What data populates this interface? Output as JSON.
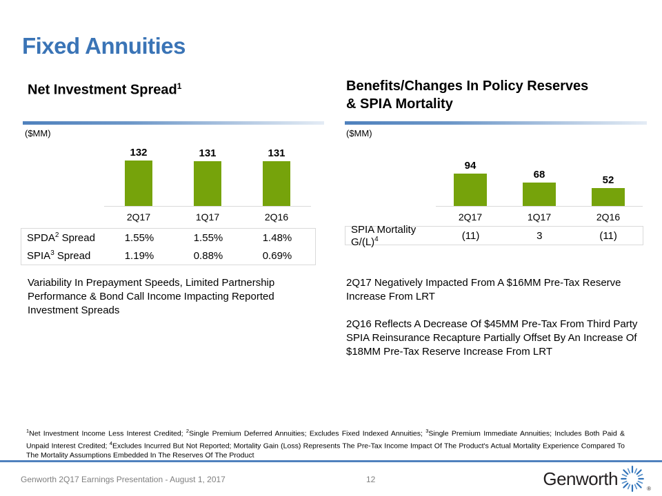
{
  "slide": {
    "title": "Fixed Annuities",
    "page_number": "12",
    "footer_text": "Genworth 2Q17 Earnings Presentation - August 1, 2017",
    "logo_text": "Genworth",
    "registered_mark": "®"
  },
  "left_panel": {
    "heading": "Net Investment Spread",
    "heading_sup": "1",
    "unit_label": "($MM)",
    "table": {
      "rows": [
        {
          "label_prefix": "SPDA",
          "label_sup": "2",
          "label_suffix": " Spread",
          "values": [
            "1.55%",
            "1.55%",
            "1.48%"
          ]
        },
        {
          "label_prefix": "SPIA",
          "label_sup": "3",
          "label_suffix": " Spread",
          "values": [
            "1.19%",
            "0.88%",
            "0.69%"
          ]
        }
      ]
    },
    "commentary": "Variability In Prepayment Speeds, Limited Partnership Performance & Bond Call Income Impacting Reported Investment Spreads"
  },
  "right_panel": {
    "heading_line1": "Benefits/Changes In Policy Reserves",
    "heading_line2": "& SPIA Mortality",
    "unit_label": "($MM)",
    "table": {
      "rows": [
        {
          "label_prefix": "SPIA Mortality G/(L)",
          "label_sup": "4",
          "label_suffix": "",
          "values": [
            "(11)",
            "3",
            "(11)"
          ]
        }
      ]
    },
    "commentary_1": "2Q17 Negatively Impacted From A $16MM Pre-Tax Reserve Increase From LRT",
    "commentary_2": "2Q16 Reflects A Decrease Of $45MM Pre-Tax From Third Party SPIA Reinsurance Recapture Partially Offset By An Increase Of $18MM Pre-Tax Reserve Increase From LRT"
  },
  "chart_data": [
    {
      "type": "bar",
      "title": "Net Investment Spread ($MM)",
      "categories": [
        "2Q17",
        "1Q17",
        "2Q16"
      ],
      "values": [
        132,
        131,
        131
      ],
      "value_labels_shown": true,
      "ylim": [
        0,
        140
      ],
      "grid": false,
      "legend": "none",
      "table_rows": [
        {
          "label": "SPDA(2) Spread",
          "values": [
            "1.55%",
            "1.55%",
            "1.48%"
          ]
        },
        {
          "label": "SPIA(3) Spread",
          "values": [
            "1.19%",
            "0.88%",
            "0.69%"
          ]
        }
      ]
    },
    {
      "type": "bar",
      "title": "Benefits/Changes In Policy Reserves & SPIA Mortality ($MM)",
      "categories": [
        "2Q17",
        "1Q17",
        "2Q16"
      ],
      "values": [
        94,
        68,
        52
      ],
      "value_labels_shown": true,
      "ylim": [
        0,
        140
      ],
      "grid": false,
      "legend": "none",
      "table_rows": [
        {
          "label": "SPIA Mortality G/(L)(4)",
          "values": [
            "(11)",
            "3",
            "(11)"
          ]
        }
      ]
    }
  ],
  "footnote": {
    "s1_sup": "1",
    "s1": "Net Investment Income Less Interest Credited; ",
    "s2_sup": "2",
    "s2": "Single Premium Deferred Annuities; Excludes Fixed Indexed Annuities; ",
    "s3_sup": "3",
    "s3": "Single Premium Immediate Annuities; Includes Both Paid & Unpaid Interest Credited; ",
    "s4_sup": "4",
    "s4": "Excludes Incurred But Not Reported; Mortality Gain (Loss) Represents The Pre-Tax Income Impact Of The Product's Actual Mortality Experience Compared To The Mortality Assumptions Embedded In The Reserves Of The Product"
  },
  "colors": {
    "title_blue": "#3A74B6",
    "bar_green": "#76A30B",
    "divider_blue": "#4F81BD",
    "footer_line_blue": "#4F81BD",
    "footer_text_gray": "#7F7F7F",
    "table_border_gray": "#D9D9D9"
  }
}
